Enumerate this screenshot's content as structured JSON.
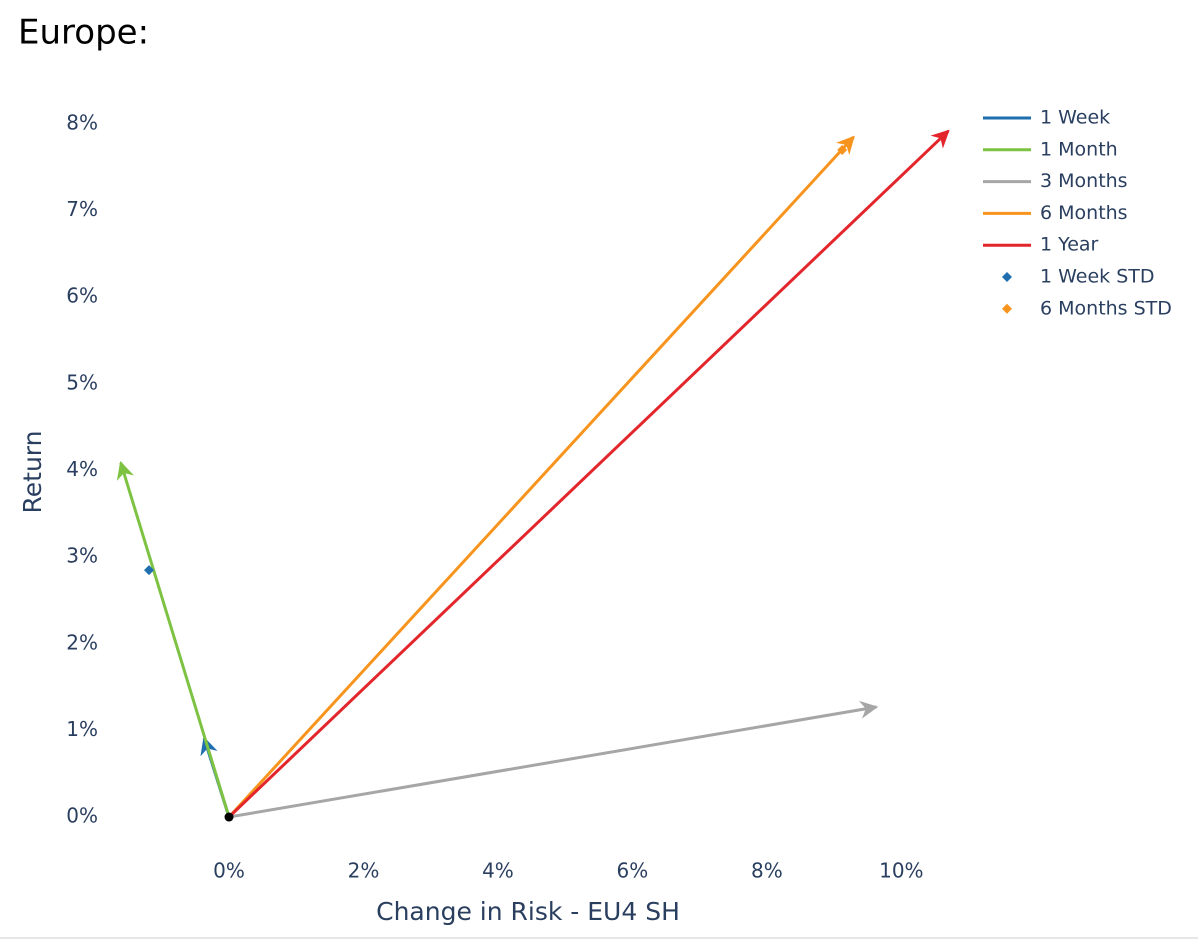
{
  "chart_data": {
    "type": "vector",
    "title": "Europe:",
    "x_label": "Change in Risk - EU4 SH",
    "y_label": "Return",
    "xlim": [
      -1.8,
      11.2
    ],
    "ylim": [
      -0.45,
      8.3
    ],
    "xticks": [
      {
        "value": 0,
        "label": "0%"
      },
      {
        "value": 2,
        "label": "2%"
      },
      {
        "value": 4,
        "label": "4%"
      },
      {
        "value": 6,
        "label": "6%"
      },
      {
        "value": 8,
        "label": "8%"
      },
      {
        "value": 10,
        "label": "10%"
      }
    ],
    "yticks": [
      {
        "value": 0,
        "label": "0%"
      },
      {
        "value": 1,
        "label": "1%"
      },
      {
        "value": 2,
        "label": "2%"
      },
      {
        "value": 3,
        "label": "3%"
      },
      {
        "value": 4,
        "label": "4%"
      },
      {
        "value": 5,
        "label": "5%"
      },
      {
        "value": 6,
        "label": "6%"
      },
      {
        "value": 7,
        "label": "7%"
      },
      {
        "value": 8,
        "label": "8%"
      }
    ],
    "grid": false,
    "legend": "top-right",
    "series": [
      {
        "name": "1 Week",
        "mode": "lines",
        "color": "#1f6fb0",
        "x": [
          0,
          -0.37
        ],
        "values": [
          0,
          0.91
        ]
      },
      {
        "name": "1 Month",
        "mode": "lines",
        "color": "#7dc242",
        "x": [
          0,
          -1.61
        ],
        "values": [
          0,
          4.09
        ]
      },
      {
        "name": "3 Months",
        "mode": "lines",
        "color": "#a6a6a6",
        "x": [
          0,
          9.63
        ],
        "values": [
          0,
          1.27
        ]
      },
      {
        "name": "6 Months",
        "mode": "lines",
        "color": "#f7941d",
        "x": [
          0,
          9.29
        ],
        "values": [
          0,
          7.85
        ]
      },
      {
        "name": "1 Year",
        "mode": "lines",
        "color": "#e3262c",
        "x": [
          0,
          10.7
        ],
        "values": [
          0,
          7.92
        ]
      },
      {
        "name": "1 Week STD",
        "mode": "markers",
        "color": "#1f6fb0",
        "x": [
          -1.19
        ],
        "values": [
          2.85
        ]
      },
      {
        "name": "6 Months STD",
        "mode": "markers",
        "color": "#f7941d",
        "x": [
          9.12
        ],
        "values": [
          7.7
        ]
      }
    ]
  }
}
